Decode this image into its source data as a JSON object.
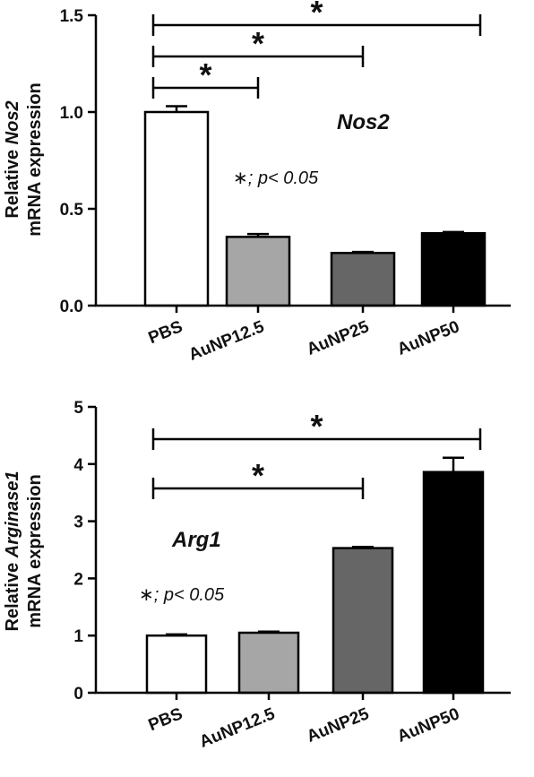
{
  "chart_data": [
    {
      "type": "bar",
      "title": "Nos2",
      "ylabel_prefix": "Relative ",
      "ylabel_gene": "Nos2",
      "ylabel_line2": "mRNA expression",
      "categories": [
        "PBS",
        "AuNP12.5",
        "AuNP25",
        "AuNP50"
      ],
      "values": [
        1.0,
        0.355,
        0.272,
        0.374
      ],
      "errors": [
        0.03,
        0.015,
        0.005,
        0.006
      ],
      "colors": [
        "#ffffff",
        "#a6a6a6",
        "#666666",
        "#000000"
      ],
      "ylim": [
        0,
        1.5
      ],
      "yticks": [
        "0.0",
        "0.5",
        "1.0",
        "1.5"
      ],
      "significance_note": "∗; p< 0.05",
      "comparisons": [
        {
          "from": "PBS",
          "to": "AuNP12.5",
          "label": "*"
        },
        {
          "from": "PBS",
          "to": "AuNP25",
          "label": "*"
        },
        {
          "from": "PBS",
          "to": "AuNP50",
          "label": "*"
        }
      ]
    },
    {
      "type": "bar",
      "title": "Arg1",
      "ylabel_prefix": "Relative ",
      "ylabel_gene": "Arginase1",
      "ylabel_line2": "mRNA expression",
      "categories": [
        "PBS",
        "AuNP12.5",
        "AuNP25",
        "AuNP50"
      ],
      "values": [
        1.0,
        1.05,
        2.53,
        3.86
      ],
      "errors": [
        0.02,
        0.02,
        0.02,
        0.25
      ],
      "colors": [
        "#ffffff",
        "#a6a6a6",
        "#666666",
        "#000000"
      ],
      "ylim": [
        0,
        5
      ],
      "yticks": [
        "0",
        "1",
        "2",
        "3",
        "4",
        "5"
      ],
      "significance_note": "∗; p< 0.05",
      "comparisons": [
        {
          "from": "PBS",
          "to": "AuNP25",
          "label": "*"
        },
        {
          "from": "PBS",
          "to": "AuNP50",
          "label": "*"
        }
      ]
    }
  ]
}
